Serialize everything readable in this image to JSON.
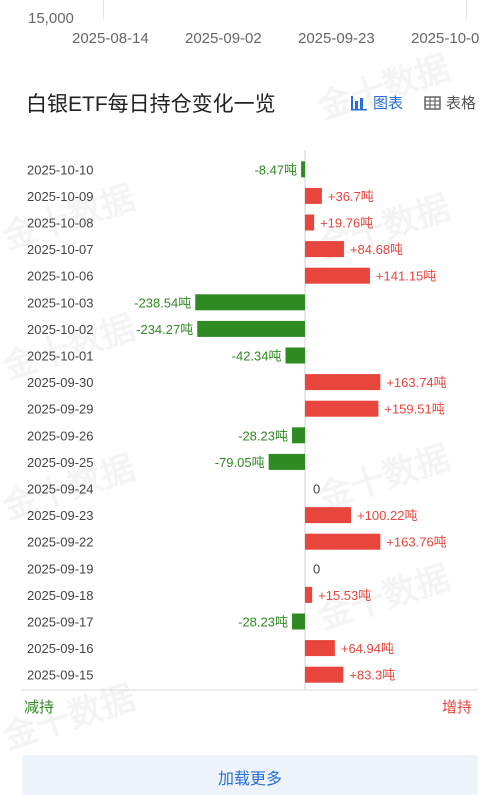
{
  "top_axis": {
    "ylabel": "15,000",
    "xticks": [
      "2025-08-14",
      "2025-09-02",
      "2025-09-23",
      "2025-10-0"
    ]
  },
  "header": {
    "title": "白银ETF每日持仓变化一览",
    "view_chart_label": "图表",
    "view_table_label": "表格"
  },
  "watermark_text": "金十数据",
  "colors": {
    "positive": "#e8453c",
    "negative": "#2e8b22",
    "accent": "#2a6fd6"
  },
  "chart_data": {
    "type": "bar",
    "orientation": "horizontal",
    "unit": "吨",
    "categories": [
      "2025-10-10",
      "2025-10-09",
      "2025-10-08",
      "2025-10-07",
      "2025-10-06",
      "2025-10-03",
      "2025-10-02",
      "2025-10-01",
      "2025-09-30",
      "2025-09-29",
      "2025-09-26",
      "2025-09-25",
      "2025-09-24",
      "2025-09-23",
      "2025-09-22",
      "2025-09-19",
      "2025-09-18",
      "2025-09-17",
      "2025-09-16",
      "2025-09-15"
    ],
    "values": [
      -8.47,
      36.7,
      19.76,
      84.68,
      141.15,
      -238.54,
      -234.27,
      -42.34,
      163.74,
      159.51,
      -28.23,
      -79.05,
      0,
      100.22,
      163.76,
      0,
      15.53,
      -28.23,
      64.94,
      83.3
    ],
    "data_labels": [
      "-8.47吨",
      "+36.7吨",
      "+19.76吨",
      "+84.68吨",
      "+141.15吨",
      "-238.54吨",
      "-234.27吨",
      "-42.34吨",
      "+163.74吨",
      "+159.51吨",
      "-28.23吨",
      "-79.05吨",
      "0",
      "+100.22吨",
      "+163.76吨",
      "0",
      "+15.53吨",
      "-28.23吨",
      "+64.94吨",
      "+83.3吨"
    ],
    "xticks": [
      -300,
      -200,
      -100,
      0,
      100,
      200
    ],
    "xlim": [
      -300,
      250
    ],
    "left_label": "减持",
    "right_label": "增持"
  },
  "load_more_label": "加载更多"
}
